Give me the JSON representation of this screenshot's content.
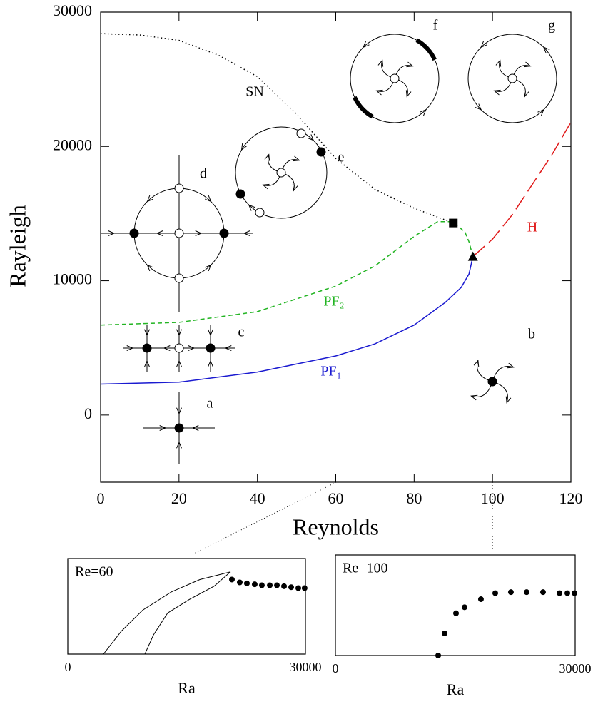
{
  "chart_data": [
    {
      "type": "line",
      "xlabel": "Reynolds",
      "ylabel": "Rayleigh",
      "xlim": [
        0,
        120
      ],
      "ylim": [
        -5000,
        30000
      ],
      "xticks": [
        0,
        20,
        40,
        60,
        80,
        100,
        120
      ],
      "yticks": [
        0,
        10000,
        20000,
        30000
      ],
      "series": [
        {
          "name": "SN",
          "color": "#000000",
          "style": "dotted",
          "x": [
            0,
            10,
            20,
            30,
            40,
            50,
            60,
            70,
            80,
            90
          ],
          "values": [
            28400,
            28300,
            27900,
            26800,
            25200,
            22400,
            19100,
            16800,
            15400,
            14300
          ]
        },
        {
          "name": "PF₂",
          "color": "#22b422",
          "style": "dashed",
          "x": [
            0,
            20,
            40,
            60,
            70,
            80,
            86,
            90,
            93,
            94,
            95
          ],
          "values": [
            6700,
            6900,
            7700,
            9600,
            11100,
            13300,
            14400,
            14400,
            13600,
            12900,
            11800
          ]
        },
        {
          "name": "PF₁",
          "color": "#1a1ad0",
          "style": "solid",
          "x": [
            0,
            20,
            40,
            60,
            70,
            80,
            88,
            92,
            94,
            95
          ],
          "values": [
            2300,
            2450,
            3200,
            4400,
            5300,
            6700,
            8400,
            9500,
            10500,
            11800
          ]
        },
        {
          "name": "H",
          "color": "#e01818",
          "style": "longdash",
          "x": [
            95,
            100,
            105,
            110,
            115,
            120
          ],
          "values": [
            11800,
            13100,
            14900,
            17100,
            19300,
            21800
          ]
        }
      ],
      "points": [
        {
          "x": 90,
          "y": 14300,
          "marker": "square"
        },
        {
          "x": 95,
          "y": 11800,
          "marker": "triangle"
        }
      ],
      "annotations": [
        "a",
        "b",
        "c",
        "d",
        "e",
        "f",
        "g"
      ]
    },
    {
      "type": "scatter",
      "title": "Re=60",
      "xlabel": "Ra",
      "xlim": [
        0,
        30000
      ],
      "xticks": [
        0,
        30000
      ],
      "ylim": [
        0,
        1
      ],
      "series": [
        {
          "style": "line",
          "x": [
            4500,
            6760,
            9460,
            13060,
            16670,
            20540
          ],
          "values": [
            0,
            0.24,
            0.46,
            0.65,
            0.78,
            0.86
          ]
        },
        {
          "style": "line",
          "x": [
            9730,
            10810,
            12610,
            15320,
            18470,
            20540
          ],
          "values": [
            0,
            0.2,
            0.43,
            0.57,
            0.71,
            0.86
          ]
        },
        {
          "style": "dots",
          "x": [
            20720,
            21710,
            22610,
            23600,
            24500,
            25500,
            26400,
            27300,
            28200,
            29100,
            29900
          ],
          "values": [
            0.78,
            0.75,
            0.74,
            0.73,
            0.72,
            0.72,
            0.72,
            0.71,
            0.7,
            0.69,
            0.69
          ]
        }
      ]
    },
    {
      "type": "scatter",
      "title": "Re=100",
      "xlabel": "Ra",
      "xlim": [
        0,
        30000
      ],
      "xticks": [
        0,
        30000
      ],
      "ylim": [
        0,
        1
      ],
      "series": [
        {
          "style": "dots",
          "x": [
            12860,
            13660,
            15090,
            16160,
            18210,
            20000,
            21960,
            23930,
            25980,
            28040,
            29020,
            29910
          ],
          "values": [
            0,
            0.22,
            0.42,
            0.48,
            0.56,
            0.62,
            0.63,
            0.63,
            0.63,
            0.62,
            0.62,
            0.62
          ]
        }
      ]
    }
  ]
}
